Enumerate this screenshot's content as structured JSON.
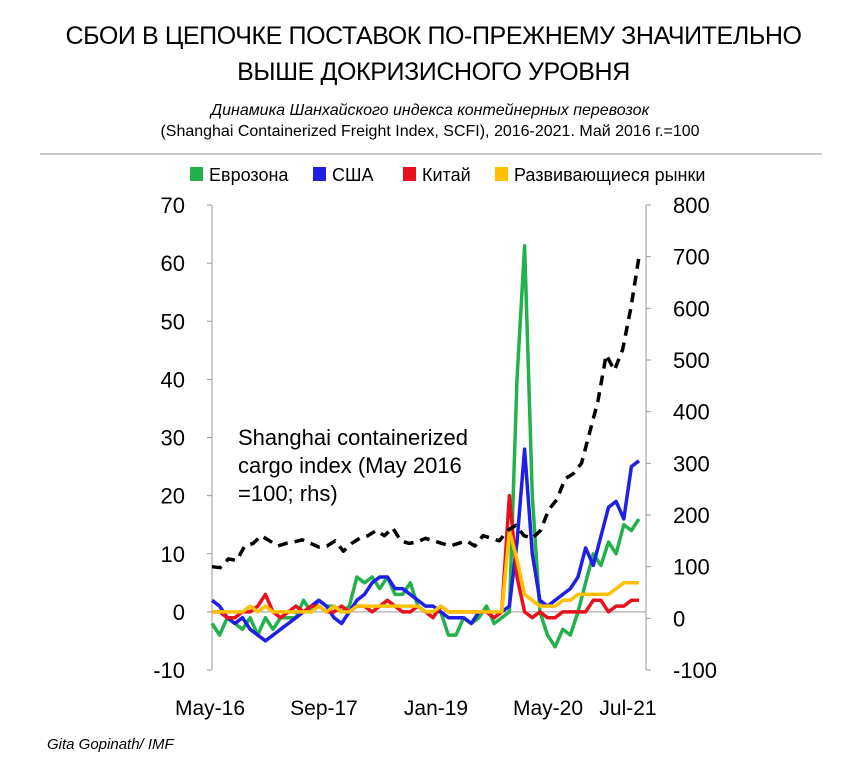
{
  "header": {
    "title_line1": "СБОИ В ЦЕПОЧКЕ ПОСТАВОК ПО-ПРЕЖНЕМУ ЗНАЧИТЕЛЬНО",
    "title_line2": "ВЫШЕ ДОКРИЗИСНОГО УРОВНЯ",
    "subtitle_line1": "Динамика Шанхайского индекса контейнерных перевозок",
    "subtitle_line2": "(Shanghai Containerized Freight Index, SCFI), 2016-2021. Май 2016 г.=100"
  },
  "source": "Gita Gopinath/ IMF",
  "chart_data": {
    "type": "line",
    "annotation": "Shanghai containerized cargo index (May 2016 =100; rhs)",
    "annotation_lines": [
      "Shanghai containerized",
      "cargo index (May 2016",
      "=100; rhs)"
    ],
    "x_tick_labels": [
      "May-16",
      "Sep-17",
      "Jan-19",
      "May-20",
      "Jul-21"
    ],
    "x_tick_index": [
      0,
      16,
      32,
      48,
      62
    ],
    "y_left": {
      "min": -10,
      "max": 70,
      "ticks": [
        -10,
        0,
        10,
        20,
        30,
        40,
        50,
        60,
        70
      ]
    },
    "y_right": {
      "min": -100,
      "max": 800,
      "ticks": [
        -100,
        0,
        100,
        200,
        300,
        400,
        500,
        600,
        700,
        800
      ]
    },
    "grid": false,
    "legend_placement": "top",
    "series": [
      {
        "name": "Еврозона",
        "color": "#22b14c",
        "axis": "left",
        "values": [
          -2,
          -4,
          -1,
          -2,
          -3,
          -1,
          -4,
          -1,
          -3,
          -1,
          -1,
          -1,
          2,
          0,
          2,
          1,
          1,
          0,
          1,
          6,
          5,
          6,
          4,
          6,
          3,
          3,
          5,
          1,
          0,
          0,
          0,
          -4,
          -4,
          -1,
          -2,
          -1,
          1,
          -2,
          -1,
          0,
          40,
          63,
          20,
          0,
          -4,
          -6,
          -3,
          -4,
          0,
          5,
          10,
          8,
          12,
          10,
          15,
          14,
          16
        ]
      },
      {
        "name": "США",
        "color": "#1f1fe6",
        "axis": "left",
        "values": [
          2,
          1,
          -1,
          -2,
          -1,
          -3,
          -4,
          -5,
          -4,
          -3,
          -2,
          -1,
          0,
          1,
          2,
          1,
          -1,
          -2,
          0,
          2,
          3,
          5,
          6,
          6,
          4,
          4,
          3,
          2,
          1,
          1,
          0,
          -1,
          -1,
          -1,
          -2,
          0,
          0,
          -1,
          0,
          1,
          12,
          28,
          10,
          2,
          1,
          2,
          3,
          4,
          6,
          11,
          8,
          13,
          18,
          19,
          16,
          25,
          26
        ]
      },
      {
        "name": "Китай",
        "color": "#e8101c",
        "axis": "left",
        "values": [
          0,
          0,
          -1,
          -1,
          0,
          0,
          1,
          3,
          0,
          -1,
          0,
          1,
          0,
          1,
          1,
          0,
          0,
          1,
          0,
          1,
          1,
          0,
          1,
          2,
          1,
          0,
          0,
          1,
          0,
          -1,
          1,
          0,
          0,
          0,
          0,
          0,
          0,
          -1,
          0,
          20,
          6,
          0,
          -1,
          0,
          -1,
          -1,
          0,
          0,
          0,
          0,
          2,
          2,
          0,
          1,
          1,
          2,
          2
        ]
      },
      {
        "name": "Развивающиеся рынки",
        "color": "#ffc000",
        "axis": "left",
        "values": [
          0,
          0,
          0,
          0,
          0,
          1,
          0,
          1,
          0,
          0,
          0,
          0,
          0,
          0,
          1,
          0,
          1,
          0,
          0,
          1,
          1,
          1,
          1,
          1,
          1,
          1,
          1,
          1,
          0,
          0,
          1,
          0,
          0,
          0,
          0,
          0,
          0,
          0,
          0,
          14,
          9,
          3,
          2,
          1,
          1,
          1,
          2,
          2,
          3,
          3,
          3,
          3,
          3,
          4,
          5,
          5,
          5
        ]
      },
      {
        "name": "",
        "color": "#000000",
        "axis": "right",
        "dashed": true,
        "values": [
          100,
          98,
          115,
          112,
          140,
          145,
          160,
          150,
          140,
          145,
          148,
          152,
          145,
          138,
          140,
          150,
          130,
          145,
          155,
          160,
          170,
          160,
          175,
          150,
          145,
          148,
          155,
          150,
          145,
          140,
          145,
          150,
          140,
          160,
          155,
          150,
          170,
          180,
          160,
          155,
          170,
          210,
          230,
          270,
          280,
          300,
          360,
          420,
          510,
          480,
          520,
          600,
          700
        ],
        "x_offset": 10
      }
    ],
    "series_x_index_note": "monthly positions, May-16 = 0"
  }
}
